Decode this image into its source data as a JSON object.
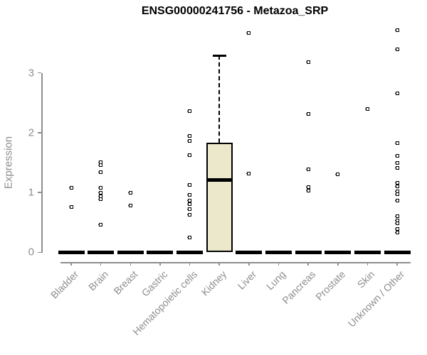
{
  "title": "ENSG00000241756 - Metazoa_SRP",
  "colors": {
    "box_fill": "#ECE8CC",
    "box_border": "#000000",
    "axis": "#8E8E8E",
    "title": "#000000",
    "point": "#000000"
  },
  "chart_data": {
    "type": "boxplot",
    "title": "ENSG00000241756 - Metazoa_SRP",
    "xlabel": "",
    "ylabel": "Expression",
    "ylim": [
      0,
      3.8
    ],
    "yticks": [
      0,
      1,
      2,
      3
    ],
    "grid": false,
    "legend": false,
    "categories": [
      "Bladder",
      "Brain",
      "Breast",
      "Gastric",
      "Hematopoietic cells",
      "Kidney",
      "Liver",
      "Lung",
      "Pancreas",
      "Prostate",
      "Skin",
      "Unknown / Other"
    ],
    "groups": [
      {
        "name": "Bladder",
        "median": 0,
        "outliers": [
          1.08,
          0.76
        ]
      },
      {
        "name": "Brain",
        "median": 0,
        "outliers": [
          1.51,
          1.46,
          1.34,
          1.08,
          0.99,
          0.94,
          0.89,
          0.46
        ]
      },
      {
        "name": "Breast",
        "median": 0,
        "outliers": [
          1.0,
          0.78
        ]
      },
      {
        "name": "Gastric",
        "median": 0,
        "outliers": []
      },
      {
        "name": "Hematopoietic cells",
        "median": 0,
        "outliers": [
          2.36,
          1.94,
          1.86,
          1.63,
          1.13,
          0.96,
          0.86,
          0.8,
          0.72,
          0.63,
          0.25
        ]
      },
      {
        "name": "Kidney",
        "median": 1.21,
        "q1": 0,
        "q3": 1.83,
        "whisker_low": 0,
        "whisker_high": 3.29,
        "outliers": []
      },
      {
        "name": "Liver",
        "median": 0,
        "outliers": [
          3.67,
          1.32
        ]
      },
      {
        "name": "Lung",
        "median": 0,
        "outliers": []
      },
      {
        "name": "Pancreas",
        "median": 0,
        "outliers": [
          3.18,
          2.31,
          1.39,
          1.09,
          1.03
        ]
      },
      {
        "name": "Prostate",
        "median": 0,
        "outliers": [
          1.3
        ]
      },
      {
        "name": "Skin",
        "median": 0,
        "outliers": [
          2.4
        ]
      },
      {
        "name": "Unknown / Other",
        "median": 0,
        "outliers": [
          3.71,
          3.39,
          2.66,
          1.83,
          1.61,
          1.5,
          1.41,
          1.16,
          1.1,
          1.02,
          0.97,
          0.87,
          0.6,
          0.53,
          0.48,
          0.39,
          0.33
        ]
      }
    ]
  }
}
